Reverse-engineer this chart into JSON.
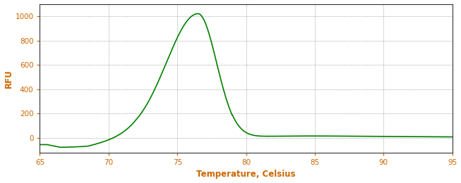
{
  "line_color": "#008000",
  "background_color": "#ffffff",
  "plot_bg_color": "#ffffff",
  "xlabel": "Temperature, Celsius",
  "ylabel": "RFU",
  "xlabel_color": "#cc6600",
  "ylabel_color": "#cc6600",
  "tick_color": "#cc6600",
  "xlim": [
    65,
    95
  ],
  "ylim": [
    -120,
    1100
  ],
  "yticks": [
    0,
    200,
    400,
    600,
    800,
    1000
  ],
  "xticks": [
    65,
    70,
    75,
    80,
    85,
    90,
    95
  ],
  "grid_color": "#555555",
  "line_width": 1.2,
  "peak_temp": 76.5,
  "peak_rfu": 1020
}
